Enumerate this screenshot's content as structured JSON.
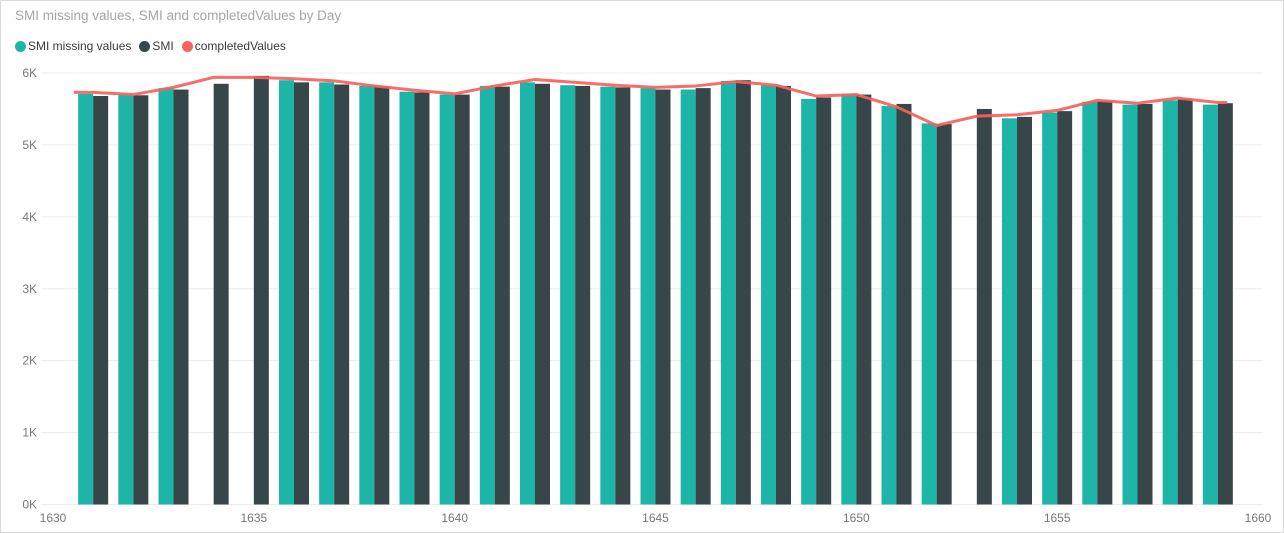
{
  "header": {
    "title": "SMI missing values, SMI and completedValues by Day"
  },
  "chart_data": {
    "type": "bar",
    "title": "SMI missing values, SMI and completedValues by Day",
    "xlabel": "",
    "ylabel": "",
    "legend_position": "top-left",
    "grid": true,
    "categories": [
      1631,
      1632,
      1633,
      1634,
      1635,
      1636,
      1637,
      1638,
      1639,
      1640,
      1641,
      1642,
      1643,
      1644,
      1645,
      1646,
      1647,
      1648,
      1649,
      1650,
      1651,
      1652,
      1653,
      1654,
      1655,
      1656,
      1657,
      1658,
      1659
    ],
    "series": [
      {
        "name": "SMI missing values",
        "type": "bar",
        "color": "#1cb5a8",
        "values": [
          5710,
          5700,
          5790,
          null,
          null,
          5900,
          5870,
          5820,
          5740,
          5700,
          5820,
          5870,
          5830,
          5810,
          5790,
          5770,
          5890,
          5830,
          5640,
          5710,
          5540,
          5300,
          null,
          5370,
          5450,
          5600,
          5560,
          5620,
          5560
        ]
      },
      {
        "name": "SMI",
        "type": "bar",
        "color": "#374649",
        "values": [
          5680,
          5690,
          5770,
          5850,
          5960,
          5870,
          5840,
          5810,
          5730,
          5700,
          5810,
          5850,
          5820,
          5800,
          5770,
          5790,
          5900,
          5820,
          5660,
          5700,
          5570,
          5290,
          5500,
          5390,
          5470,
          5610,
          5570,
          5640,
          5580
        ]
      },
      {
        "name": "completedValues",
        "type": "line",
        "color": "#f8615c",
        "values": [
          5730,
          5700,
          5800,
          5940,
          5940,
          5920,
          5890,
          5820,
          5760,
          5710,
          5820,
          5910,
          5870,
          5830,
          5800,
          5820,
          5880,
          5830,
          5680,
          5700,
          5530,
          5270,
          5400,
          5420,
          5480,
          5620,
          5580,
          5650,
          5590
        ]
      }
    ],
    "xlim": [
      1630,
      1660
    ],
    "ylim": [
      0,
      6000
    ],
    "x_ticks": [
      1630,
      1635,
      1640,
      1645,
      1650,
      1655,
      1660
    ],
    "x_tick_labels": [
      "1630",
      "1635",
      "1640",
      "1645",
      "1650",
      "1655",
      "1660"
    ],
    "y_ticks": [
      0,
      1000,
      2000,
      3000,
      4000,
      5000,
      6000
    ],
    "y_tick_labels": [
      "0K",
      "1K",
      "2K",
      "3K",
      "4K",
      "5K",
      "6K"
    ]
  },
  "colors": {
    "gridline": "#ececec",
    "axis_text": "#777777",
    "title_text": "#a6a6a6",
    "legend_text": "#3a3a3a",
    "border": "#d9d9d9"
  }
}
